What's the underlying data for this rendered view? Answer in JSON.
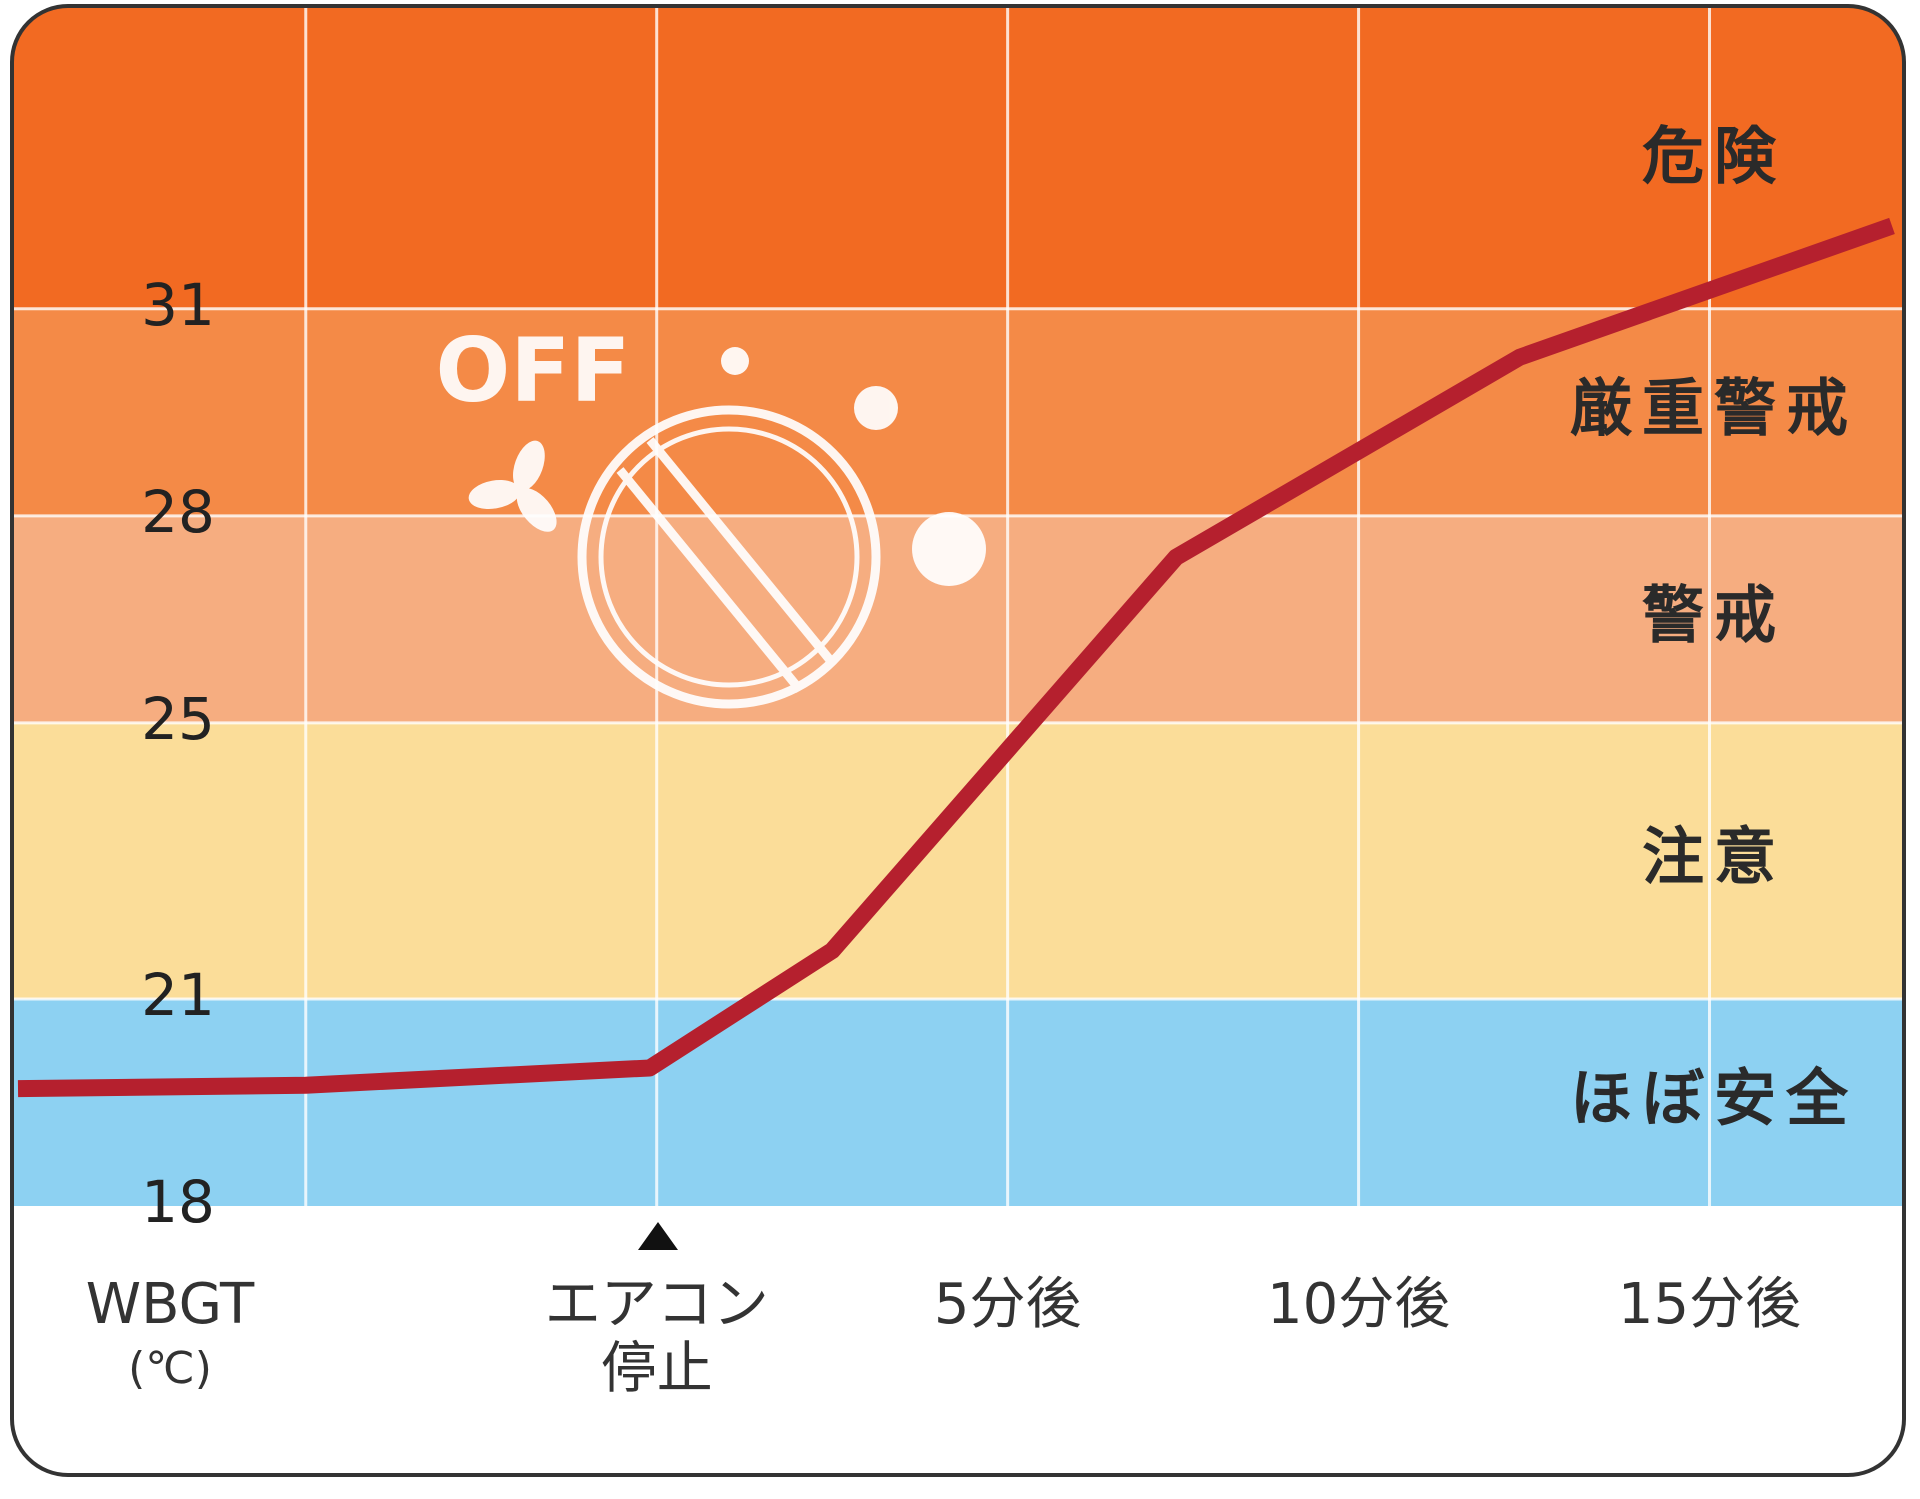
{
  "chart_data": {
    "type": "line",
    "ylim": [
      18,
      35.3
    ],
    "yticks": [
      18,
      21,
      25,
      28,
      31
    ],
    "xlim": [
      -9.1,
      17.6
    ],
    "xgrid": [
      -5,
      0,
      5,
      10,
      15
    ],
    "xticks": [
      {
        "value": 0,
        "label": "エアコン\n停止"
      },
      {
        "value": 5,
        "label": "5分後"
      },
      {
        "value": 10,
        "label": "10分後"
      },
      {
        "value": 15,
        "label": "15分後"
      }
    ],
    "y_label": "WBGT",
    "y_unit": "(℃)",
    "icon_label": "OFF",
    "bands": [
      {
        "range": [
          18,
          21
        ],
        "label": "ほぼ安全",
        "color": "#8dd1f2"
      },
      {
        "range": [
          21,
          25
        ],
        "label": "注意",
        "color": "#fbdd99"
      },
      {
        "range": [
          25,
          28
        ],
        "label": "警戒",
        "color": "#f6ad80"
      },
      {
        "range": [
          28,
          31
        ],
        "label": "厳重警戒",
        "color": "#f48a47"
      },
      {
        "range": [
          31,
          35.3
        ],
        "label": "危険",
        "color": "#f26a22"
      }
    ],
    "series": [
      {
        "color": "#b5202e",
        "x": [
          -9.1,
          -5,
          -0.1,
          2.5,
          7.4,
          12.3,
          17.6
        ],
        "values": [
          19.7,
          19.75,
          20.0,
          21.7,
          27.4,
          30.3,
          32.2
        ]
      }
    ]
  }
}
